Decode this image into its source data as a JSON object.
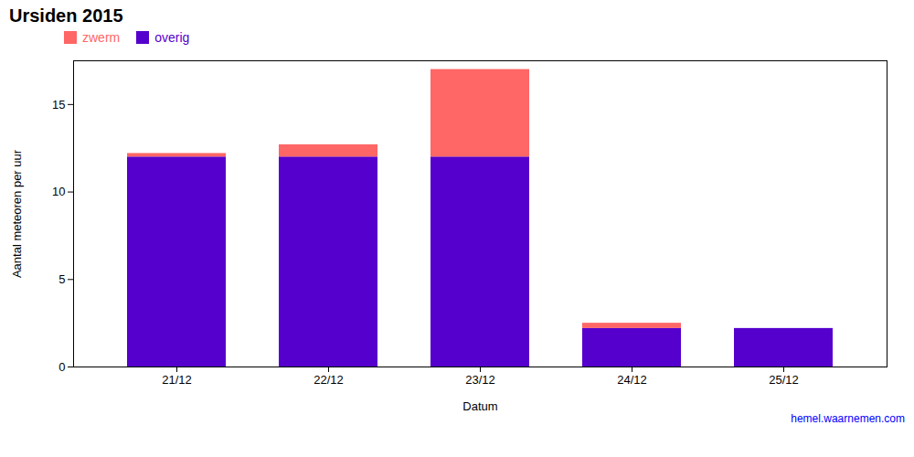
{
  "chart_data": {
    "type": "bar",
    "title": "Ursiden 2015",
    "xlabel": "Datum",
    "ylabel": "Aantal meteoren per uur",
    "categories": [
      "21/12",
      "22/12",
      "23/12",
      "24/12",
      "25/12"
    ],
    "series": [
      {
        "name": "overig",
        "color": "#5500cc",
        "values": [
          12.0,
          12.0,
          12.0,
          2.2,
          2.2
        ]
      },
      {
        "name": "zwerm",
        "color": "#ff6666",
        "values": [
          0.2,
          0.7,
          5.0,
          0.3,
          0.0
        ]
      }
    ],
    "stacked": true,
    "ylim": [
      0,
      17.5
    ],
    "yticks": [
      0,
      5,
      10,
      15
    ],
    "grid": false,
    "legend": "upper left",
    "annotations": [
      {
        "text": "hemel.waarnemen.com",
        "color": "#0000ff"
      }
    ]
  }
}
